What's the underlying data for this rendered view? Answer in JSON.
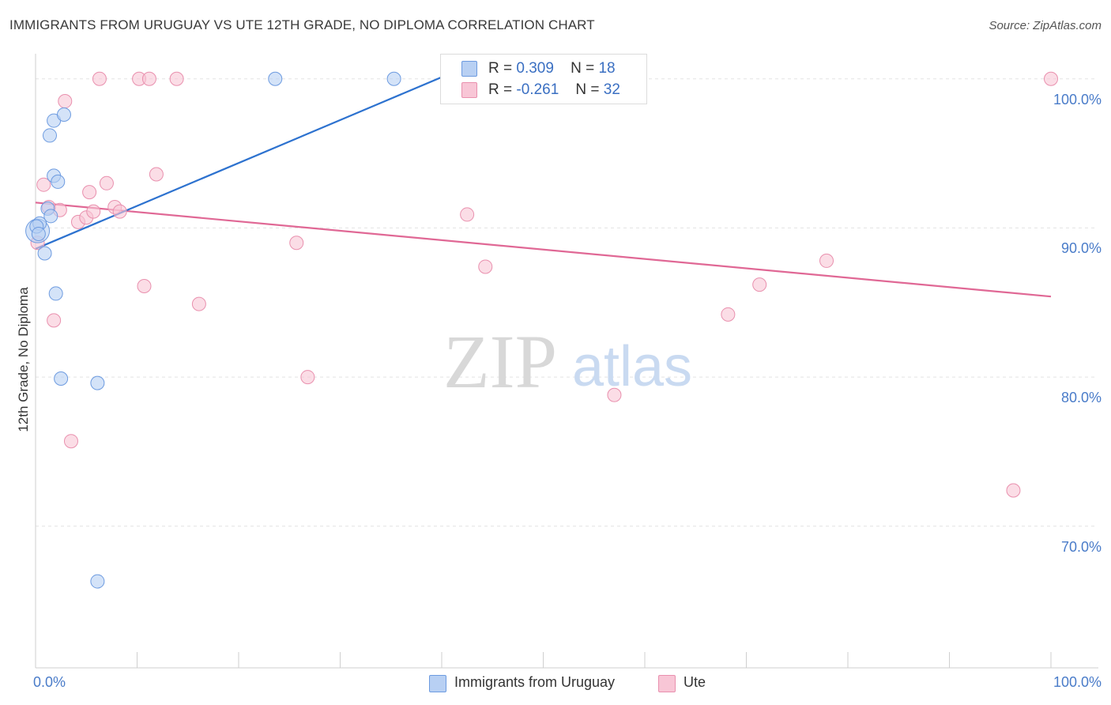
{
  "header": {
    "title": "IMMIGRANTS FROM URUGUAY VS UTE 12TH GRADE, NO DIPLOMA CORRELATION CHART",
    "source": "Source: ZipAtlas.com"
  },
  "watermark": {
    "zip": "ZIP",
    "atlas": "atlas"
  },
  "legend_top": {
    "rows": [
      {
        "r_label": "R =",
        "r_value": "0.309",
        "n_label": "N =",
        "n_value": "18"
      },
      {
        "r_label": "R =",
        "r_value": "-0.261",
        "n_label": "N =",
        "n_value": "32"
      }
    ]
  },
  "chart_data": {
    "type": "scatter",
    "title": "IMMIGRANTS FROM URUGUAY VS UTE 12TH GRADE, NO DIPLOMA CORRELATION CHART",
    "xlabel": "",
    "ylabel": "12th Grade, No Diploma",
    "xlim": [
      0,
      100
    ],
    "ylim": [
      60.5,
      102
    ],
    "x_tick_labels": [
      "0.0%",
      "100.0%"
    ],
    "y_ticks": [
      70,
      80,
      90,
      100
    ],
    "y_tick_labels": [
      "70.0%",
      "80.0%",
      "90.0%",
      "100.0%"
    ],
    "grid": true,
    "legend_position": "bottom",
    "colors": {
      "blue_fill": "#b8d0f3",
      "blue_stroke": "#6d9be0",
      "blue_line": "#2d72cf",
      "pink_fill": "#f8c6d6",
      "pink_stroke": "#e990ae",
      "pink_line": "#e06895",
      "tick_label": "#4a7cc9",
      "grid": "#e3e3e3"
    },
    "series": [
      {
        "name": "Immigrants from Uruguay",
        "color": "#6d9be0",
        "points": [
          {
            "x": 0.2,
            "y": 89.8,
            "size": "large"
          },
          {
            "x": 0.4,
            "y": 90.3
          },
          {
            "x": 0.9,
            "y": 88.3
          },
          {
            "x": 1.2,
            "y": 91.3
          },
          {
            "x": 1.4,
            "y": 96.2
          },
          {
            "x": 1.5,
            "y": 90.8
          },
          {
            "x": 1.8,
            "y": 97.2
          },
          {
            "x": 1.8,
            "y": 93.5
          },
          {
            "x": 2.0,
            "y": 85.6
          },
          {
            "x": 2.2,
            "y": 93.1
          },
          {
            "x": 2.5,
            "y": 79.9
          },
          {
            "x": 2.8,
            "y": 97.6
          },
          {
            "x": 6.1,
            "y": 79.6
          },
          {
            "x": 6.1,
            "y": 66.3
          },
          {
            "x": 23.6,
            "y": 100.0
          },
          {
            "x": 35.3,
            "y": 100.0
          },
          {
            "x": 0.1,
            "y": 90.1
          },
          {
            "x": 0.3,
            "y": 89.6
          }
        ],
        "trend": {
          "x1": 0,
          "y1": 88.6,
          "x2": 41.0,
          "y2": 100.4
        }
      },
      {
        "name": "Ute",
        "color": "#e990ae",
        "points": [
          {
            "x": 0.2,
            "y": 89.0
          },
          {
            "x": 0.8,
            "y": 92.9
          },
          {
            "x": 1.3,
            "y": 91.4
          },
          {
            "x": 1.8,
            "y": 83.8
          },
          {
            "x": 2.4,
            "y": 91.2
          },
          {
            "x": 2.9,
            "y": 98.5
          },
          {
            "x": 3.5,
            "y": 75.7
          },
          {
            "x": 4.2,
            "y": 90.4
          },
          {
            "x": 5.0,
            "y": 90.7
          },
          {
            "x": 5.3,
            "y": 92.4
          },
          {
            "x": 5.7,
            "y": 91.1
          },
          {
            "x": 6.3,
            "y": 100.0
          },
          {
            "x": 7.0,
            "y": 93.0
          },
          {
            "x": 7.8,
            "y": 91.4
          },
          {
            "x": 8.3,
            "y": 91.1
          },
          {
            "x": 10.2,
            "y": 100.0
          },
          {
            "x": 10.7,
            "y": 86.1
          },
          {
            "x": 11.2,
            "y": 100.0
          },
          {
            "x": 11.9,
            "y": 93.6
          },
          {
            "x": 13.9,
            "y": 100.0
          },
          {
            "x": 16.1,
            "y": 84.9
          },
          {
            "x": 25.7,
            "y": 89.0
          },
          {
            "x": 26.8,
            "y": 80.0
          },
          {
            "x": 42.5,
            "y": 90.9
          },
          {
            "x": 44.3,
            "y": 87.4
          },
          {
            "x": 52.3,
            "y": 100.0
          },
          {
            "x": 57.0,
            "y": 78.8
          },
          {
            "x": 68.2,
            "y": 84.2
          },
          {
            "x": 71.3,
            "y": 86.2
          },
          {
            "x": 77.9,
            "y": 87.8
          },
          {
            "x": 96.3,
            "y": 72.4
          },
          {
            "x": 100.0,
            "y": 100.0
          }
        ],
        "trend": {
          "x1": 0,
          "y1": 91.7,
          "x2": 100,
          "y2": 85.4
        }
      }
    ]
  }
}
